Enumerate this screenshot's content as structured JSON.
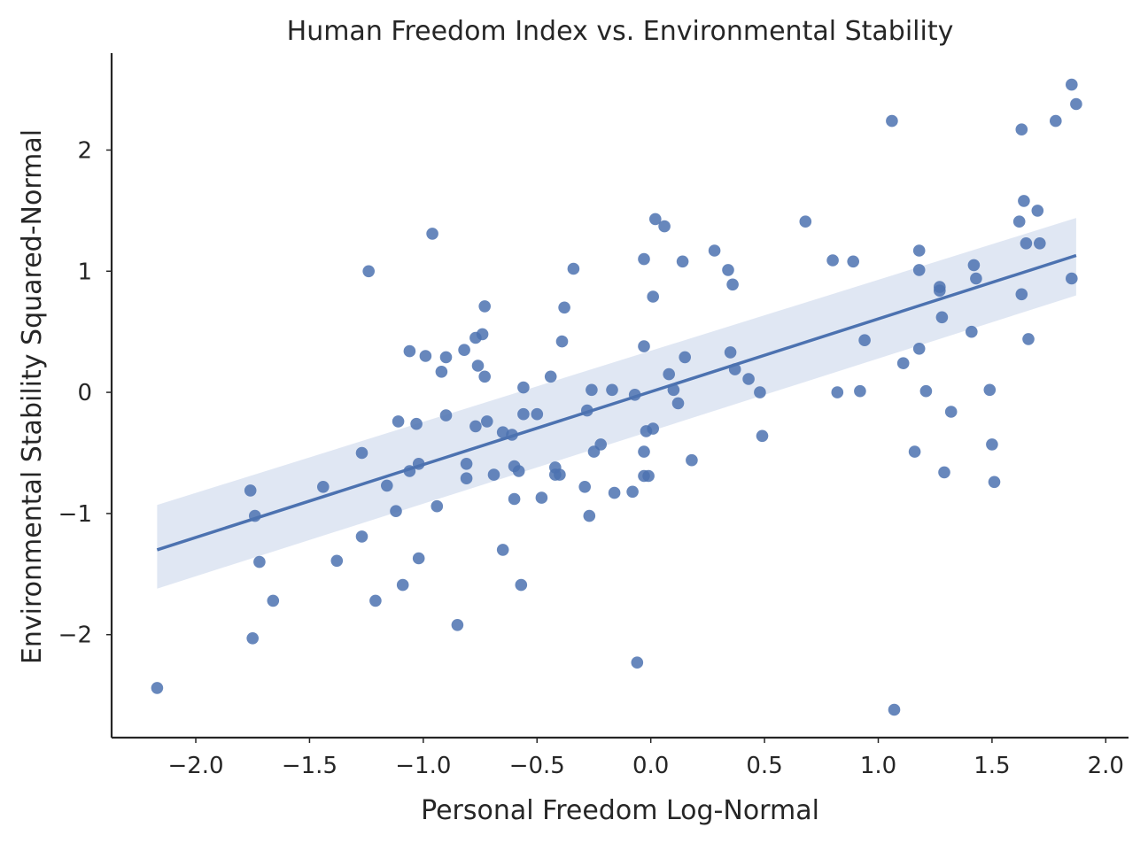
{
  "chart_data": {
    "type": "scatter",
    "title": "Human Freedom Index vs. Environmental Stability",
    "xlabel": "Personal Freedom Log-Normal",
    "ylabel": "Environmental Stability Squared-Normal",
    "xlim": [
      -2.37,
      2.1
    ],
    "ylim": [
      -2.85,
      2.8
    ],
    "xticks": [
      -2.0,
      -1.5,
      -1.0,
      -0.5,
      0.0,
      0.5,
      1.0,
      1.5,
      2.0
    ],
    "xtick_labels": [
      "−2.0",
      "−1.5",
      "−1.0",
      "−0.5",
      "0.0",
      "0.5",
      "1.0",
      "1.5",
      "2.0"
    ],
    "yticks": [
      -2,
      -1,
      0,
      1,
      2
    ],
    "ytick_labels": [
      "−2",
      "−1",
      "0",
      "1",
      "2"
    ],
    "grid": false,
    "colors": {
      "points": "#4c72b0",
      "line": "#4c72b0",
      "band": "#c7d3ea"
    },
    "regression": {
      "x": [
        -2.17,
        1.87
      ],
      "y": [
        -1.3,
        1.13
      ],
      "ci_upper": [
        -0.93,
        1.44
      ],
      "ci_lower": [
        -1.62,
        0.8
      ]
    },
    "points": [
      [
        -2.17,
        -2.44
      ],
      [
        -1.76,
        -0.81
      ],
      [
        -1.75,
        -2.03
      ],
      [
        -1.74,
        -1.02
      ],
      [
        -1.72,
        -1.4
      ],
      [
        -1.66,
        -1.72
      ],
      [
        -1.44,
        -0.78
      ],
      [
        -1.38,
        -1.39
      ],
      [
        -1.27,
        -0.5
      ],
      [
        -1.27,
        -1.19
      ],
      [
        -1.24,
        1.0
      ],
      [
        -1.21,
        -1.72
      ],
      [
        -1.16,
        -0.77
      ],
      [
        -1.12,
        -0.98
      ],
      [
        -1.11,
        -0.24
      ],
      [
        -1.09,
        -1.59
      ],
      [
        -1.06,
        0.34
      ],
      [
        -1.06,
        -0.65
      ],
      [
        -1.03,
        -0.26
      ],
      [
        -1.02,
        -0.59
      ],
      [
        -1.02,
        -1.37
      ],
      [
        -0.99,
        0.3
      ],
      [
        -0.96,
        1.31
      ],
      [
        -0.94,
        -0.94
      ],
      [
        -0.92,
        0.17
      ],
      [
        -0.9,
        0.29
      ],
      [
        -0.9,
        -0.19
      ],
      [
        -0.85,
        -1.92
      ],
      [
        -0.82,
        0.35
      ],
      [
        -0.81,
        -0.59
      ],
      [
        -0.81,
        -0.71
      ],
      [
        -0.77,
        0.45
      ],
      [
        -0.77,
        -0.28
      ],
      [
        -0.76,
        0.22
      ],
      [
        -0.74,
        0.48
      ],
      [
        -0.73,
        0.71
      ],
      [
        -0.73,
        0.13
      ],
      [
        -0.72,
        -0.24
      ],
      [
        -0.69,
        -0.68
      ],
      [
        -0.65,
        -0.33
      ],
      [
        -0.65,
        -1.3
      ],
      [
        -0.61,
        -0.35
      ],
      [
        -0.6,
        -0.61
      ],
      [
        -0.6,
        -0.88
      ],
      [
        -0.58,
        -0.65
      ],
      [
        -0.57,
        -1.59
      ],
      [
        -0.56,
        0.04
      ],
      [
        -0.56,
        -0.18
      ],
      [
        -0.5,
        -0.18
      ],
      [
        -0.48,
        -0.87
      ],
      [
        -0.44,
        0.13
      ],
      [
        -0.42,
        -0.62
      ],
      [
        -0.42,
        -0.68
      ],
      [
        -0.4,
        -0.68
      ],
      [
        -0.39,
        0.42
      ],
      [
        -0.38,
        0.7
      ],
      [
        -0.34,
        1.02
      ],
      [
        -0.29,
        -0.78
      ],
      [
        -0.28,
        -0.15
      ],
      [
        -0.27,
        -1.02
      ],
      [
        -0.26,
        0.02
      ],
      [
        -0.25,
        -0.49
      ],
      [
        -0.22,
        -0.43
      ],
      [
        -0.17,
        0.02
      ],
      [
        -0.16,
        -0.83
      ],
      [
        -0.08,
        -0.82
      ],
      [
        -0.07,
        -0.02
      ],
      [
        -0.06,
        -2.23
      ],
      [
        -0.03,
        0.38
      ],
      [
        -0.03,
        1.1
      ],
      [
        -0.03,
        -0.49
      ],
      [
        -0.03,
        -0.69
      ],
      [
        -0.02,
        -0.32
      ],
      [
        -0.01,
        -0.69
      ],
      [
        0.01,
        -0.3
      ],
      [
        0.01,
        0.79
      ],
      [
        0.02,
        1.43
      ],
      [
        0.06,
        1.37
      ],
      [
        0.08,
        0.15
      ],
      [
        0.1,
        0.02
      ],
      [
        0.12,
        -0.09
      ],
      [
        0.14,
        1.08
      ],
      [
        0.15,
        0.29
      ],
      [
        0.18,
        -0.56
      ],
      [
        0.28,
        1.17
      ],
      [
        0.34,
        1.01
      ],
      [
        0.35,
        0.33
      ],
      [
        0.36,
        0.89
      ],
      [
        0.37,
        0.19
      ],
      [
        0.43,
        0.11
      ],
      [
        0.48,
        0.0
      ],
      [
        0.49,
        -0.36
      ],
      [
        0.68,
        1.41
      ],
      [
        0.8,
        1.09
      ],
      [
        0.82,
        0.0
      ],
      [
        0.89,
        1.08
      ],
      [
        0.92,
        0.01
      ],
      [
        0.94,
        0.43
      ],
      [
        1.06,
        2.24
      ],
      [
        1.07,
        -2.62
      ],
      [
        1.11,
        0.24
      ],
      [
        1.16,
        -0.49
      ],
      [
        1.18,
        1.17
      ],
      [
        1.18,
        1.01
      ],
      [
        1.18,
        0.36
      ],
      [
        1.21,
        0.01
      ],
      [
        1.27,
        0.87
      ],
      [
        1.27,
        0.84
      ],
      [
        1.28,
        0.62
      ],
      [
        1.29,
        -0.66
      ],
      [
        1.32,
        -0.16
      ],
      [
        1.41,
        0.5
      ],
      [
        1.42,
        1.05
      ],
      [
        1.43,
        0.94
      ],
      [
        1.49,
        0.02
      ],
      [
        1.5,
        -0.43
      ],
      [
        1.51,
        -0.74
      ],
      [
        1.62,
        1.41
      ],
      [
        1.63,
        0.81
      ],
      [
        1.63,
        2.17
      ],
      [
        1.64,
        1.58
      ],
      [
        1.65,
        1.23
      ],
      [
        1.66,
        0.44
      ],
      [
        1.7,
        1.5
      ],
      [
        1.71,
        1.23
      ],
      [
        1.78,
        2.24
      ],
      [
        1.85,
        2.54
      ],
      [
        1.85,
        0.94
      ],
      [
        1.87,
        2.38
      ]
    ]
  }
}
